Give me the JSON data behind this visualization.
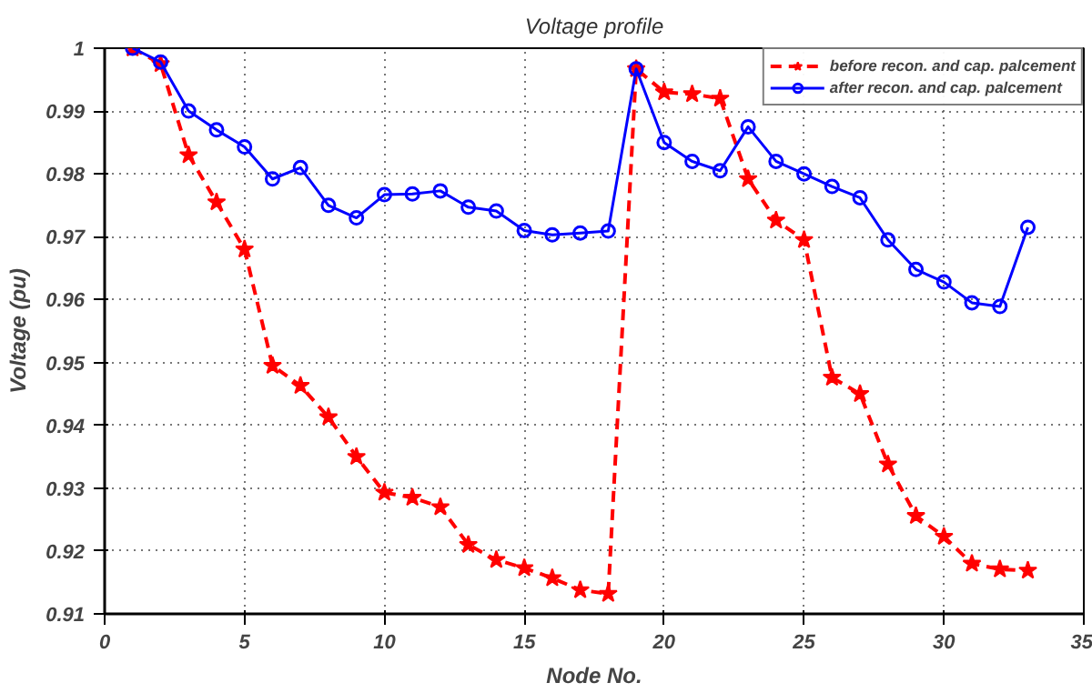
{
  "chart_data": {
    "type": "line",
    "title": "Voltage profile",
    "xlabel": "Node No.",
    "ylabel": "Voltage (pu)",
    "x": [
      1,
      2,
      3,
      4,
      5,
      6,
      7,
      8,
      9,
      10,
      11,
      12,
      13,
      14,
      15,
      16,
      17,
      18,
      19,
      20,
      21,
      22,
      23,
      24,
      25,
      26,
      27,
      28,
      29,
      30,
      31,
      32,
      33
    ],
    "series": [
      {
        "name": "before recon. and cap. palcement",
        "color": "#ff0000",
        "marker": "star",
        "line_style": "dashed",
        "values": [
          1,
          0.9975,
          0.983,
          0.9755,
          0.968,
          0.9495,
          0.9463,
          0.9413,
          0.935,
          0.9293,
          0.9285,
          0.927,
          0.921,
          0.9186,
          0.9173,
          0.9157,
          0.9138,
          0.9132,
          0.9967,
          0.993,
          0.9927,
          0.992,
          0.9792,
          0.9726,
          0.9695,
          0.9476,
          0.945,
          0.9338,
          0.9256,
          0.9223,
          0.918,
          0.9171,
          0.9169
        ]
      },
      {
        "name": "after recon. and cap. palcement",
        "color": "#0000ff",
        "marker": "circle",
        "line_style": "solid",
        "values": [
          1,
          0.9978,
          0.99,
          0.987,
          0.9843,
          0.9792,
          0.981,
          0.975,
          0.973,
          0.9767,
          0.9768,
          0.9773,
          0.9747,
          0.9741,
          0.971,
          0.9703,
          0.9706,
          0.9709,
          0.9967,
          0.985,
          0.982,
          0.9805,
          0.9875,
          0.982,
          0.98,
          0.978,
          0.9762,
          0.9695,
          0.9648,
          0.9628,
          0.9595,
          0.9589,
          0.9715
        ]
      }
    ],
    "xlim": [
      0,
      35
    ],
    "xticks": [
      0,
      5,
      10,
      15,
      20,
      25,
      30,
      35
    ],
    "ylim": [
      0.91,
      1
    ],
    "yticks": [
      0.91,
      0.92,
      0.93,
      0.94,
      0.95,
      0.96,
      0.97,
      0.98,
      0.99,
      1
    ],
    "grid": true,
    "legend": "top right"
  }
}
